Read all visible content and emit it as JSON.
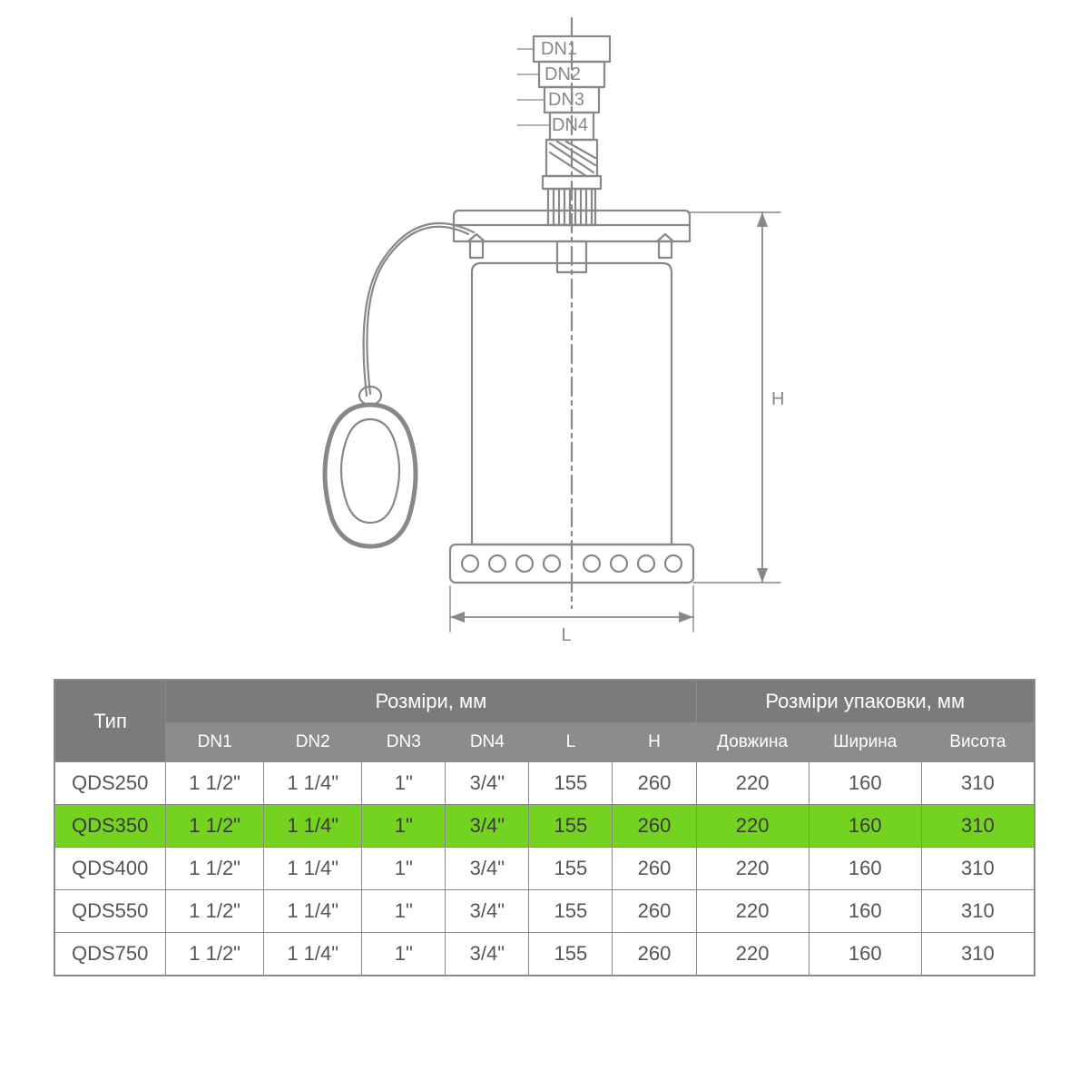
{
  "diagram": {
    "labels": {
      "dn1": "DN1",
      "dn2": "DN2",
      "dn3": "DN3",
      "dn4": "DN4",
      "H": "H",
      "L": "L"
    },
    "stroke": "#888888",
    "stroke_width": 2.2,
    "label_color": "#888888",
    "label_fontsize": 20
  },
  "table": {
    "header_bg": "#7b7b7b",
    "subheader_bg": "#8c8c8c",
    "header_color": "#ffffff",
    "cell_color": "#555555",
    "border_color": "#8a8a8a",
    "highlight_bg": "#74d31f",
    "groups": {
      "type": "Тип",
      "dims": "Розміри, мм",
      "pack": "Розміри упаковки, мм"
    },
    "columns": [
      "DN1",
      "DN2",
      "DN3",
      "DN4",
      "L",
      "H",
      "Довжина",
      "Ширина",
      "Висота"
    ],
    "rows": [
      {
        "type": "QDS250",
        "dn1": "1 1/2\"",
        "dn2": "1 1/4\"",
        "dn3": "1\"",
        "dn4": "3/4\"",
        "l": "155",
        "h": "260",
        "pl": "220",
        "pw": "160",
        "ph": "310",
        "hl": false
      },
      {
        "type": "QDS350",
        "dn1": "1 1/2\"",
        "dn2": "1 1/4\"",
        "dn3": "1\"",
        "dn4": "3/4\"",
        "l": "155",
        "h": "260",
        "pl": "220",
        "pw": "160",
        "ph": "310",
        "hl": true
      },
      {
        "type": "QDS400",
        "dn1": "1 1/2\"",
        "dn2": "1 1/4\"",
        "dn3": "1\"",
        "dn4": "3/4\"",
        "l": "155",
        "h": "260",
        "pl": "220",
        "pw": "160",
        "ph": "310",
        "hl": false
      },
      {
        "type": "QDS550",
        "dn1": "1 1/2\"",
        "dn2": "1 1/4\"",
        "dn3": "1\"",
        "dn4": "3/4\"",
        "l": "155",
        "h": "260",
        "pl": "220",
        "pw": "160",
        "ph": "310",
        "hl": false
      },
      {
        "type": "QDS750",
        "dn1": "1 1/2\"",
        "dn2": "1 1/4\"",
        "dn3": "1\"",
        "dn4": "3/4\"",
        "l": "155",
        "h": "260",
        "pl": "220",
        "pw": "160",
        "ph": "310",
        "hl": false
      }
    ]
  }
}
